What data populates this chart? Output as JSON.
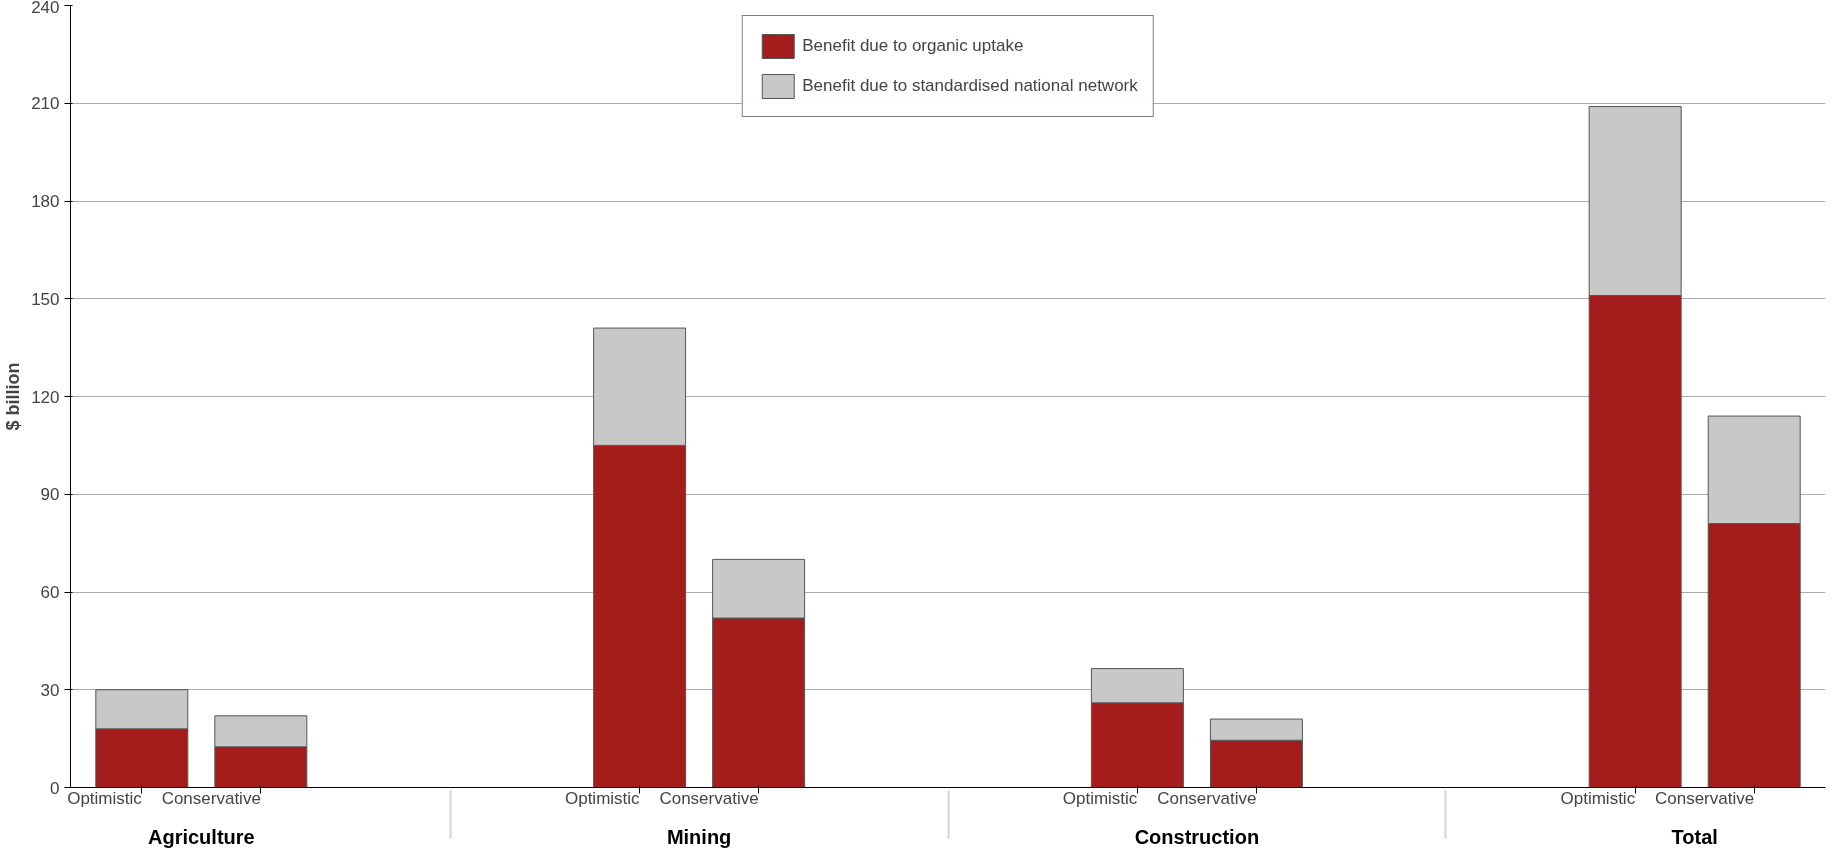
{
  "chart_data": {
    "type": "bar",
    "stacked": true,
    "ylabel": "$ billion",
    "categories": [
      "Optimistic",
      "Conservative",
      "Optimistic",
      "Conservative",
      "Optimistic",
      "Conservative",
      "Optimistic",
      "Conservative"
    ],
    "annotations": [
      "Agriculture",
      "Mining",
      "Construction",
      "Total"
    ],
    "series": [
      {
        "name": "Benefit due to organic uptake",
        "color": "#a51c1c",
        "values": [
          18,
          12.5,
          105,
          52,
          26,
          14.5,
          151,
          81
        ]
      },
      {
        "name": "Benefit due to standardised national network",
        "color": "#c8c8c8",
        "values": [
          12,
          9.5,
          36,
          18,
          10.5,
          6.5,
          58,
          33
        ]
      }
    ],
    "ylim": [
      0,
      240
    ],
    "yticks": [
      0,
      30,
      60,
      90,
      120,
      150,
      180,
      210,
      240
    ],
    "grid": "y",
    "legend": "top"
  }
}
